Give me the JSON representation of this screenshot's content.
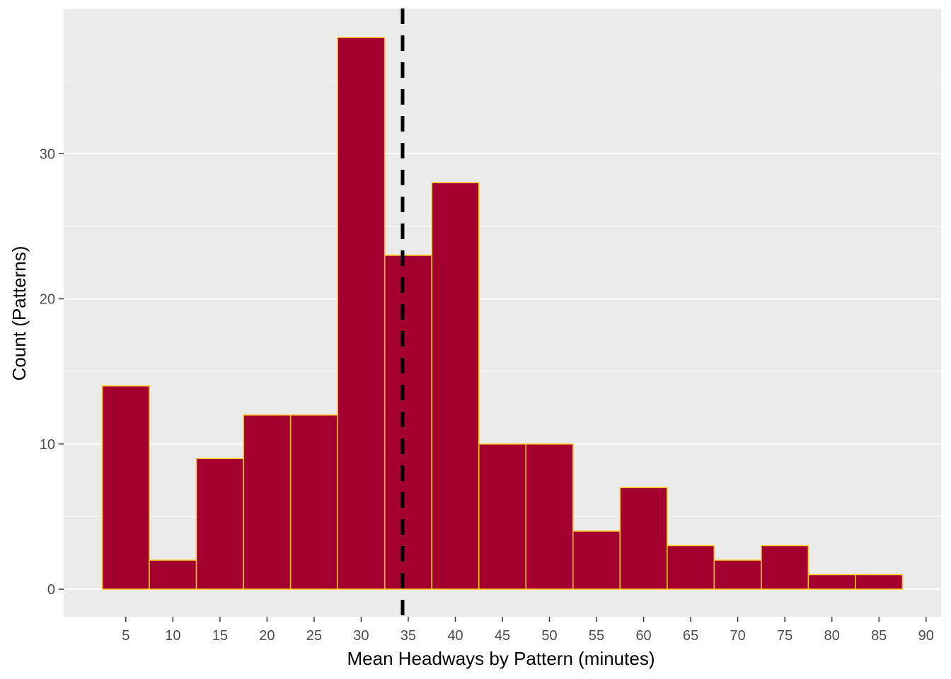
{
  "chart_data": {
    "type": "bar",
    "title": "",
    "xlabel": "Mean Headways by Pattern (minutes)",
    "ylabel": "Count (Patterns)",
    "bin_width": 5,
    "bins": [
      {
        "center": 5,
        "count": 14
      },
      {
        "center": 10,
        "count": 2
      },
      {
        "center": 15,
        "count": 9
      },
      {
        "center": 20,
        "count": 12
      },
      {
        "center": 25,
        "count": 12
      },
      {
        "center": 30,
        "count": 38
      },
      {
        "center": 35,
        "count": 23
      },
      {
        "center": 40,
        "count": 28
      },
      {
        "center": 45,
        "count": 10
      },
      {
        "center": 50,
        "count": 10
      },
      {
        "center": 55,
        "count": 4
      },
      {
        "center": 60,
        "count": 7
      },
      {
        "center": 65,
        "count": 3
      },
      {
        "center": 70,
        "count": 2
      },
      {
        "center": 75,
        "count": 3
      },
      {
        "center": 80,
        "count": 1
      },
      {
        "center": 85,
        "count": 1
      }
    ],
    "x_ticks": [
      "5",
      "10",
      "15",
      "20",
      "25",
      "30",
      "35",
      "40",
      "45",
      "50",
      "55",
      "60",
      "65",
      "70",
      "75",
      "80",
      "85",
      "90"
    ],
    "y_ticks": [
      "0",
      "10",
      "20",
      "30"
    ],
    "xlim": [
      -1.6,
      91.6
    ],
    "ylim": [
      -1.9,
      40
    ],
    "mean_line": {
      "x": 34.4,
      "style": "dashed"
    },
    "colors": {
      "panel_bg": "#EBEBEB",
      "grid": "#FFFFFF",
      "bar_fill": "#A3002F",
      "bar_outline": "#FFC425",
      "mean_line": "#000000"
    }
  }
}
